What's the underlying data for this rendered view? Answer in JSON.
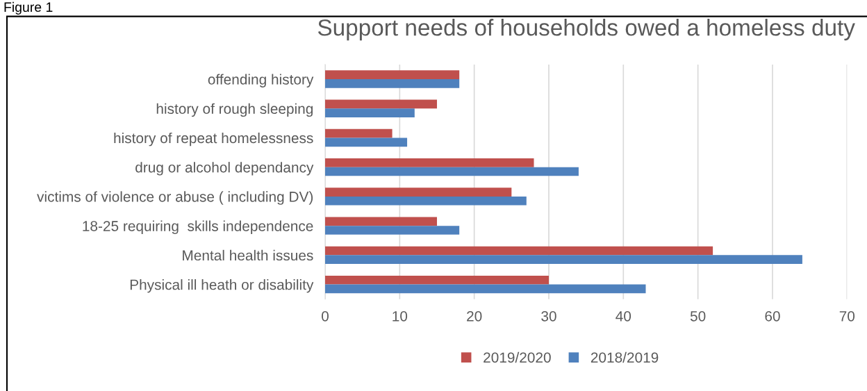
{
  "chart_data": {
    "type": "bar",
    "orientation": "horizontal",
    "title": "Support needs of households owed a homeless duty",
    "annotations": [
      "Figure 1"
    ],
    "categories": [
      "offending history",
      "history of rough sleeping",
      "history of repeat homelessness",
      "drug or alcohol dependancy",
      "victims of violence or abuse ( including DV)",
      "18-25 requiring  skills independence",
      "Mental health issues",
      "Physical ill heath or disability"
    ],
    "series": [
      {
        "name": "2019/2020",
        "color": "#c0504d",
        "values": [
          18,
          15,
          9,
          28,
          25,
          15,
          52,
          30
        ]
      },
      {
        "name": "2018/2019",
        "color": "#4f81bd",
        "values": [
          18,
          12,
          11,
          34,
          27,
          18,
          64,
          43
        ]
      }
    ],
    "xlim": [
      0,
      70
    ],
    "xticks": [
      0,
      10,
      20,
      30,
      40,
      50,
      60,
      70
    ],
    "grid": "x",
    "legend": "bottom"
  }
}
